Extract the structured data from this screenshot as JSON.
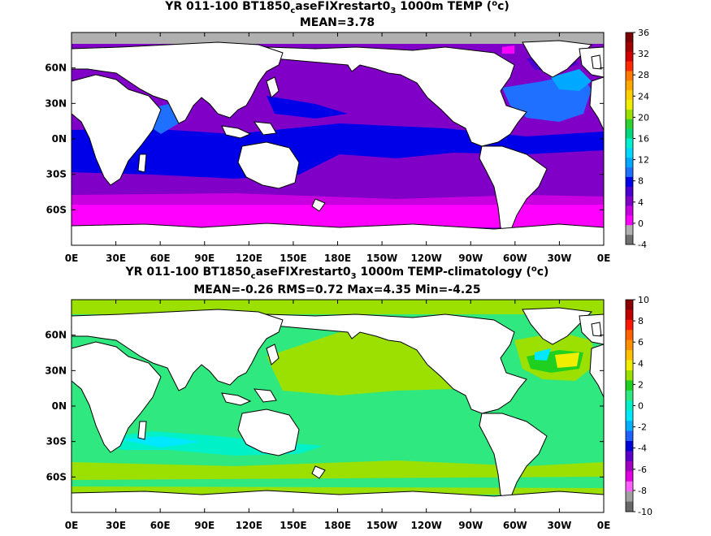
{
  "panels": [
    {
      "title_main": "YR 011-100 BT1850",
      "title_sub1": "c",
      "title_mid": "aseFIXrestart0",
      "title_sub2": "3",
      "title_tail": " 1000m TEMP (",
      "title_sup": "o",
      "title_end": "c)",
      "stats": "MEAN=3.78",
      "colorbar": {
        "labels": [
          "36",
          "32",
          "28",
          "24",
          "20",
          "16",
          "12",
          "8",
          "4",
          "0",
          "-4"
        ],
        "colors": [
          "#7a0000",
          "#a00000",
          "#d20000",
          "#ff2a00",
          "#ff7800",
          "#ffa800",
          "#ffd000",
          "#f0ee00",
          "#9be000",
          "#2fd02f",
          "#00d880",
          "#00f0d0",
          "#00d8ff",
          "#00a8ff",
          "#2070ff",
          "#0000e8",
          "#4a00d0",
          "#8000c8",
          "#c800e0",
          "#ff00ff",
          "#b0b0b0",
          "#707070"
        ]
      }
    },
    {
      "title_main": "YR 011-100 BT1850",
      "title_sub1": "c",
      "title_mid": "aseFIXrestart0",
      "title_sub2": "3",
      "title_tail": " 1000m TEMP-climatology (",
      "title_sup": "o",
      "title_end": "c)",
      "stats": "MEAN=-0.26   RMS=0.72   Max=4.35   Min=-4.25",
      "colorbar": {
        "labels": [
          "10",
          "8",
          "6",
          "4",
          "2",
          "0",
          "-2",
          "-4",
          "-6",
          "-8",
          "-10"
        ],
        "colors": [
          "#8b0000",
          "#c00000",
          "#ff1800",
          "#ff6000",
          "#ff9000",
          "#ffc000",
          "#f0ee00",
          "#9be000",
          "#20d020",
          "#30e880",
          "#00f0c8",
          "#00e8ff",
          "#00b0ff",
          "#2060ff",
          "#0000d8",
          "#5a00c8",
          "#a000c0",
          "#e000e0",
          "#ff60ff",
          "#a0a0a0",
          "#686868"
        ]
      }
    }
  ],
  "lon_ticks": [
    "0E",
    "30E",
    "60E",
    "90E",
    "120E",
    "150E",
    "180E",
    "150W",
    "120W",
    "90W",
    "60W",
    "30W",
    "0E"
  ],
  "lat_ticks": [
    "60N",
    "30N",
    "0N",
    "30S",
    "60S"
  ]
}
